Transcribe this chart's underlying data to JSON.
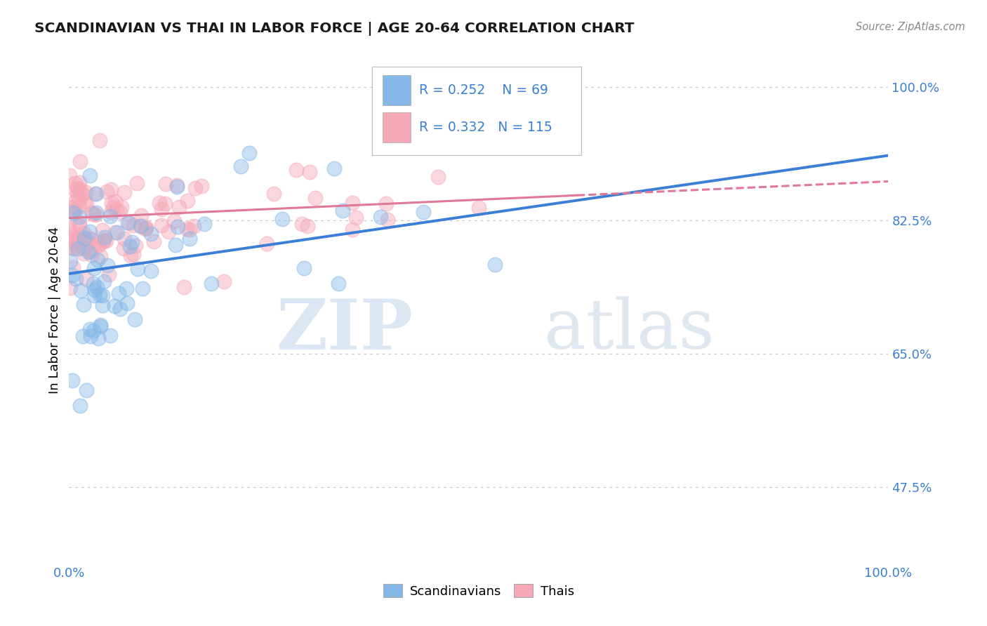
{
  "title": "SCANDINAVIAN VS THAI IN LABOR FORCE | AGE 20-64 CORRELATION CHART",
  "source": "Source: ZipAtlas.com",
  "ylabel": "In Labor Force | Age 20-64",
  "xlim": [
    0.0,
    1.0
  ],
  "ylim": [
    0.375,
    1.04
  ],
  "yticks": [
    0.475,
    0.65,
    0.825,
    1.0
  ],
  "ytick_labels": [
    "47.5%",
    "65.0%",
    "82.5%",
    "100.0%"
  ],
  "xtick_labels": [
    "0.0%",
    "100.0%"
  ],
  "xticks": [
    0.0,
    1.0
  ],
  "scandinavian_color": "#85b8e8",
  "thai_color": "#f5a8b8",
  "trend_blue": "#3a7fd5",
  "trend_pink": "#e07898",
  "legend_text_color": "#3a7fd5",
  "R_scand": 0.252,
  "N_scand": 69,
  "R_thai": 0.332,
  "N_thai": 115,
  "watermark_zip": "ZIP",
  "watermark_atlas": "atlas",
  "background_color": "#ffffff",
  "grid_color": "#c8c8c8",
  "scand_intercept": 0.755,
  "scand_slope": 0.155,
  "thai_intercept": 0.828,
  "thai_slope": 0.048
}
